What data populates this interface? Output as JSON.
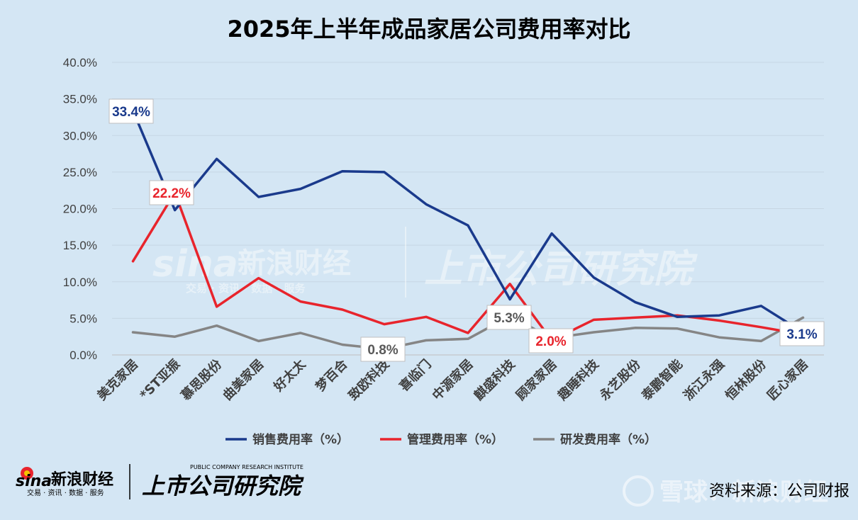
{
  "chart_data": {
    "type": "line",
    "title": "2025年上半年成品家居公司费用率对比",
    "categories": [
      "美克家居",
      "*ST亚振",
      "慕思股份",
      "曲美家居",
      "好太太",
      "梦百合",
      "致欧科技",
      "喜临门",
      "中源家居",
      "麒盛科技",
      "顾家家居",
      "趣睡科技",
      "永艺股份",
      "泰鹏智能",
      "浙江永强",
      "恒林股份",
      "匠心家居"
    ],
    "ylim": [
      0,
      40
    ],
    "yticks": [
      "0.0%",
      "5.0%",
      "10.0%",
      "15.0%",
      "20.0%",
      "25.0%",
      "30.0%",
      "35.0%",
      "40.0%"
    ],
    "grid": true,
    "legend_position": "bottom",
    "series": [
      {
        "name": "销售费用率（%）",
        "color": "#1a3a8c",
        "values": [
          33.4,
          19.8,
          26.8,
          21.6,
          22.7,
          25.1,
          25.0,
          20.6,
          17.7,
          7.6,
          16.6,
          10.6,
          7.2,
          5.2,
          5.4,
          6.7,
          3.1
        ]
      },
      {
        "name": "管理费用率（%）",
        "color": "#e8242c",
        "values": [
          12.8,
          22.2,
          6.6,
          10.5,
          7.3,
          6.2,
          4.2,
          5.2,
          3.0,
          9.7,
          2.0,
          4.8,
          5.1,
          5.4,
          4.7,
          3.8,
          2.8
        ]
      },
      {
        "name": "研发费用率（%）",
        "color": "#858585",
        "values": [
          3.1,
          2.5,
          4.0,
          1.9,
          3.0,
          1.4,
          0.8,
          2.0,
          2.2,
          5.3,
          2.3,
          3.1,
          3.7,
          3.6,
          2.4,
          1.9,
          5.1
        ]
      }
    ],
    "annotations": [
      {
        "series": 0,
        "index": 0,
        "text": "33.4%"
      },
      {
        "series": 1,
        "index": 1,
        "text": "22.2%"
      },
      {
        "series": 2,
        "index": 6,
        "text": "0.8%"
      },
      {
        "series": 2,
        "index": 9,
        "text": "5.3%"
      },
      {
        "series": 1,
        "index": 10,
        "text": "2.0%"
      },
      {
        "series": 0,
        "index": 16,
        "text": "3.1%"
      }
    ]
  },
  "watermark": {
    "sina_logo": "sina",
    "sina_name": "新浪财经",
    "sina_services": "交易 · 资讯 · 数据 · 服务",
    "institute_name": "上市公司研究院",
    "institute_en": "PUBLIC COMPANY RESEARCH INSTITUTE",
    "xueqiu": "雪球：新浪财经"
  },
  "source_text": "资料来源：公司财报"
}
